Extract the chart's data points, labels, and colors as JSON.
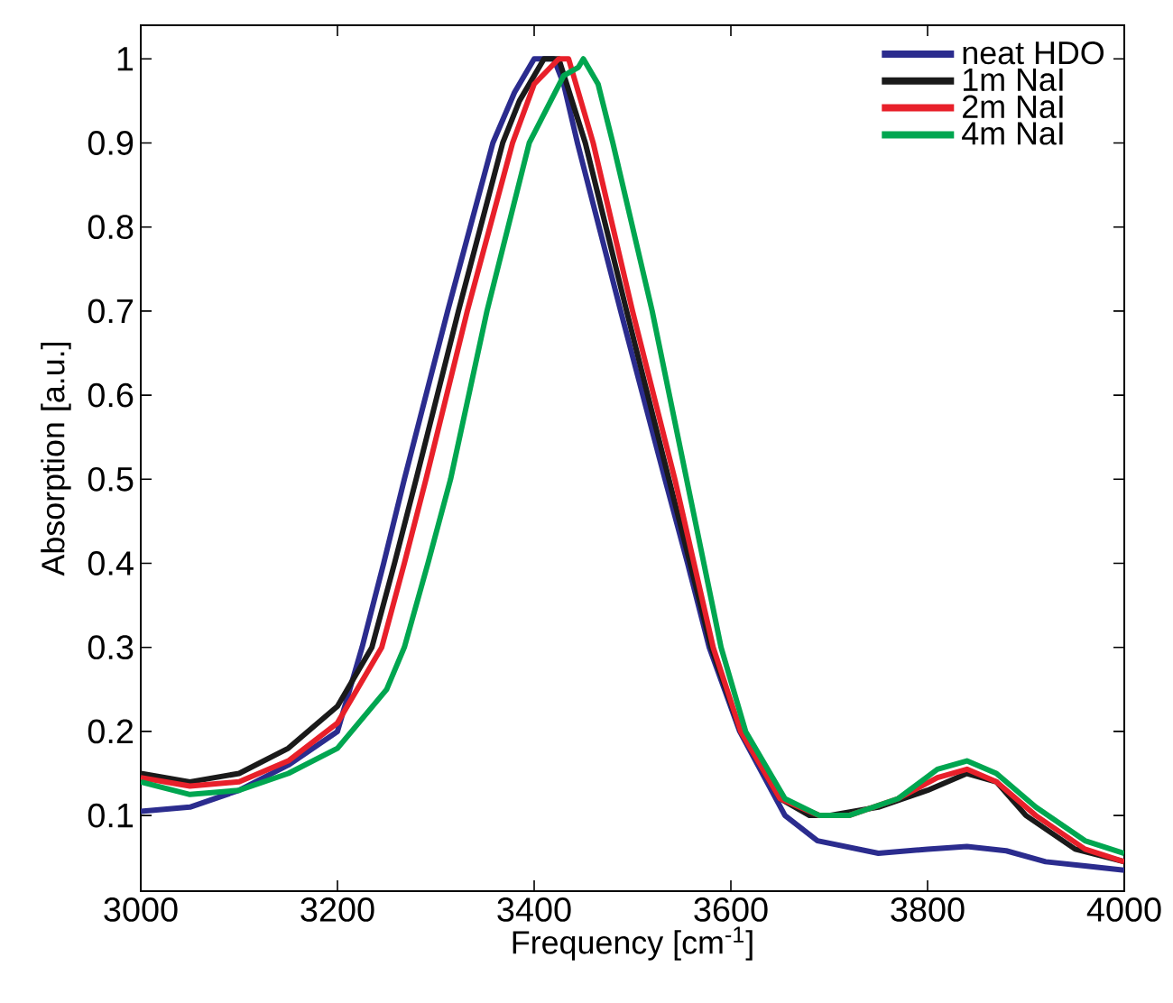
{
  "chart_data": {
    "type": "line",
    "xlabel": "Frequency [cm$^{-1}$]",
    "ylabel": "Absorption [a.u.]",
    "xlim": [
      3000,
      4000
    ],
    "ylim": [
      0.01,
      1.04
    ],
    "xticks": [
      3000,
      3200,
      3400,
      3600,
      3800,
      4000
    ],
    "yticks": [
      0.1,
      0.2,
      0.3,
      0.4,
      0.5,
      0.6,
      0.7,
      0.8,
      0.9,
      1
    ],
    "grid": false,
    "legend": "top right",
    "marker": "none",
    "line_style": "solid",
    "series": [
      {
        "name": "neat HDO",
        "color": "#2b2c8e",
        "x": [
          3000,
          3050,
          3100,
          3150,
          3200,
          3225,
          3247,
          3268,
          3290,
          3312,
          3335,
          3358,
          3380,
          3400,
          3420,
          3430,
          3444,
          3488,
          3533,
          3556,
          3578,
          3609,
          3655,
          3688,
          3750,
          3800,
          3840,
          3880,
          3920,
          3960,
          4000
        ],
        "values": [
          0.105,
          0.11,
          0.13,
          0.16,
          0.2,
          0.3,
          0.4,
          0.5,
          0.6,
          0.7,
          0.8,
          0.9,
          0.96,
          1.0,
          1.0,
          0.97,
          0.9,
          0.7,
          0.5,
          0.4,
          0.3,
          0.2,
          0.1,
          0.07,
          0.055,
          0.06,
          0.063,
          0.058,
          0.045,
          0.04,
          0.035
        ]
      },
      {
        "name": "1m NaI",
        "color": "#1a1a1a",
        "x": [
          3000,
          3050,
          3100,
          3150,
          3200,
          3235,
          3258,
          3280,
          3323,
          3368,
          3385,
          3410,
          3425,
          3452,
          3494,
          3537,
          3580,
          3610,
          3650,
          3680,
          3700,
          3750,
          3800,
          3840,
          3870,
          3900,
          3950,
          4000
        ],
        "values": [
          0.15,
          0.14,
          0.15,
          0.18,
          0.23,
          0.3,
          0.4,
          0.5,
          0.7,
          0.9,
          0.95,
          1.0,
          1.0,
          0.9,
          0.7,
          0.5,
          0.3,
          0.2,
          0.12,
          0.1,
          0.1,
          0.11,
          0.13,
          0.15,
          0.14,
          0.1,
          0.06,
          0.045
        ]
      },
      {
        "name": "2m NaI",
        "color": "#e8202a",
        "x": [
          3000,
          3050,
          3100,
          3150,
          3200,
          3245,
          3268,
          3290,
          3332,
          3378,
          3400,
          3425,
          3435,
          3460,
          3500,
          3543,
          3582,
          3610,
          3650,
          3690,
          3720,
          3770,
          3810,
          3840,
          3870,
          3910,
          3960,
          4000
        ],
        "values": [
          0.145,
          0.135,
          0.14,
          0.165,
          0.21,
          0.3,
          0.4,
          0.5,
          0.7,
          0.9,
          0.97,
          1.0,
          1.0,
          0.9,
          0.7,
          0.5,
          0.3,
          0.2,
          0.12,
          0.1,
          0.1,
          0.12,
          0.145,
          0.155,
          0.14,
          0.1,
          0.06,
          0.045
        ]
      },
      {
        "name": "4m NaI",
        "color": "#00a650",
        "x": [
          3000,
          3050,
          3100,
          3150,
          3200,
          3250,
          3268,
          3292,
          3315,
          3352,
          3395,
          3430,
          3445,
          3450,
          3465,
          3480,
          3520,
          3555,
          3590,
          3615,
          3655,
          3690,
          3720,
          3770,
          3810,
          3840,
          3870,
          3910,
          3960,
          4000
        ],
        "values": [
          0.14,
          0.125,
          0.13,
          0.15,
          0.18,
          0.25,
          0.3,
          0.4,
          0.5,
          0.7,
          0.9,
          0.98,
          0.99,
          1.0,
          0.97,
          0.9,
          0.7,
          0.5,
          0.3,
          0.2,
          0.12,
          0.1,
          0.1,
          0.12,
          0.155,
          0.165,
          0.15,
          0.11,
          0.07,
          0.055
        ]
      }
    ]
  }
}
